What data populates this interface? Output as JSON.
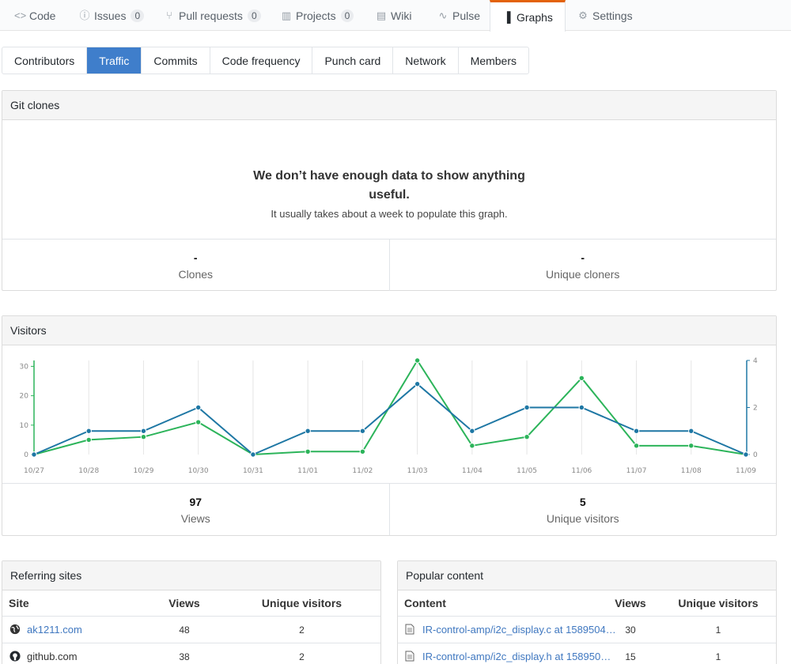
{
  "repo_nav": [
    {
      "label": "Code",
      "icon": "code-icon"
    },
    {
      "label": "Issues",
      "count": "0",
      "icon": "issue-icon"
    },
    {
      "label": "Pull requests",
      "count": "0",
      "icon": "pull-request-icon"
    },
    {
      "label": "Projects",
      "count": "0",
      "icon": "project-icon"
    },
    {
      "label": "Wiki",
      "icon": "book-icon"
    },
    {
      "label": "Pulse",
      "icon": "pulse-icon"
    },
    {
      "label": "Graphs",
      "icon": "graph-icon"
    },
    {
      "label": "Settings",
      "icon": "gear-icon"
    }
  ],
  "graph_tabs": [
    "Contributors",
    "Traffic",
    "Commits",
    "Code frequency",
    "Punch card",
    "Network",
    "Members"
  ],
  "git_clones": {
    "title": "Git clones",
    "empty_title": "We don’t have enough data to show anything useful.",
    "empty_sub": "It usually takes about a week to populate this graph.",
    "clones_value": "-",
    "clones_label": "Clones",
    "unique_value": "-",
    "unique_label": "Unique cloners"
  },
  "visitors": {
    "title": "Visitors",
    "views_value": "97",
    "views_label": "Views",
    "unique_value": "5",
    "unique_label": "Unique visitors"
  },
  "chart_data": {
    "type": "line",
    "title": "Visitors",
    "categories": [
      "10/27",
      "10/28",
      "10/29",
      "10/30",
      "10/31",
      "11/01",
      "11/02",
      "11/03",
      "11/04",
      "11/05",
      "11/06",
      "11/07",
      "11/08",
      "11/09"
    ],
    "series": [
      {
        "name": "Views",
        "axis": "left",
        "color": "#2cb45a",
        "values": [
          0,
          5,
          6,
          11,
          0,
          1,
          1,
          32,
          3,
          6,
          26,
          3,
          3,
          0
        ]
      },
      {
        "name": "Unique visitors",
        "axis": "right",
        "color": "#1e77a4",
        "values": [
          0,
          1,
          1,
          2,
          0,
          1,
          1,
          3,
          1,
          2,
          2,
          1,
          1,
          0
        ]
      }
    ],
    "y_left": {
      "ticks": [
        0,
        10,
        20,
        30
      ],
      "range": [
        0,
        32
      ]
    },
    "y_right": {
      "ticks": [
        0,
        2,
        4
      ],
      "range": [
        0,
        4
      ]
    },
    "grid": true
  },
  "referring_sites": {
    "title": "Referring sites",
    "headers": [
      "Site",
      "Views",
      "Unique visitors"
    ],
    "rows": [
      {
        "site": "ak1211.com",
        "icon": "globe-icon",
        "views": "48",
        "unique": "2"
      },
      {
        "site": "github.com",
        "icon": "github-icon",
        "views": "38",
        "unique": "2"
      }
    ]
  },
  "popular_content": {
    "title": "Popular content",
    "headers": [
      "Content",
      "Views",
      "Unique visitors"
    ],
    "rows": [
      {
        "content": "IR-control-amp/i2c_display.c at 1589504…",
        "views": "30",
        "unique": "1"
      },
      {
        "content": "IR-control-amp/i2c_display.h at 158950…",
        "views": "15",
        "unique": "1"
      }
    ]
  }
}
